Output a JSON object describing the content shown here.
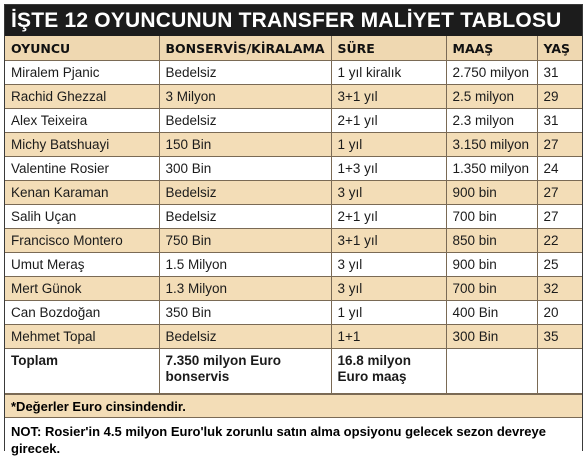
{
  "title": "İŞTE 12 OYUNCUNUN TRANSFER MALİYET TABLOSU",
  "headers": [
    "OYUNCU",
    "BONSERVİS/KİRALAMA",
    "SÜRE",
    "MAAŞ",
    "YAŞ"
  ],
  "rows": [
    [
      "Miralem Pjanic",
      "Bedelsiz",
      "1 yıl kiralık",
      "2.750 milyon",
      "31"
    ],
    [
      "Rachid Ghezzal",
      "3 Milyon",
      "3+1 yıl",
      "2.5 milyon",
      "29"
    ],
    [
      "Alex Teixeira",
      "Bedelsiz",
      "2+1 yıl",
      "2.3 milyon",
      "31"
    ],
    [
      "Michy Batshuayi",
      "150 Bin",
      "1 yıl",
      "3.150 milyon",
      "27"
    ],
    [
      "Valentine Rosier",
      "300 Bin",
      "1+3 yıl",
      "1.350 milyon",
      "24"
    ],
    [
      "Kenan Karaman",
      "Bedelsiz",
      "3 yıl",
      "900 bin",
      "27"
    ],
    [
      "Salih Uçan",
      "Bedelsiz",
      "2+1 yıl",
      "700 bin",
      "27"
    ],
    [
      "Francisco Montero",
      "750 Bin",
      "3+1 yıl",
      "850 bin",
      "22"
    ],
    [
      "Umut Meraş",
      "1.5 Milyon",
      "3 yıl",
      "900 bin",
      "25"
    ],
    [
      "Mert Günok",
      "1.3 Milyon",
      "3 yıl",
      "700 bin",
      "32"
    ],
    [
      "Can Bozdoğan",
      "350 Bin",
      "1 yıl",
      "400 Bin",
      "20"
    ],
    [
      "Mehmet Topal",
      "Bedelsiz",
      "1+1",
      "300 Bin",
      "35"
    ]
  ],
  "total": {
    "label": "Toplam",
    "bonservis_line1": "7.350 milyon Euro",
    "bonservis_line2": "bonservis",
    "sure_line1": "16.8 milyon",
    "sure_line2": "Euro maaş"
  },
  "note_currency": "*Değerler Euro cinsindendir.",
  "note_main": "NOT: Rosier'in 4.5 milyon Euro'luk zorunlu satın alma opsiyonu gelecek sezon devreye girecek."
}
